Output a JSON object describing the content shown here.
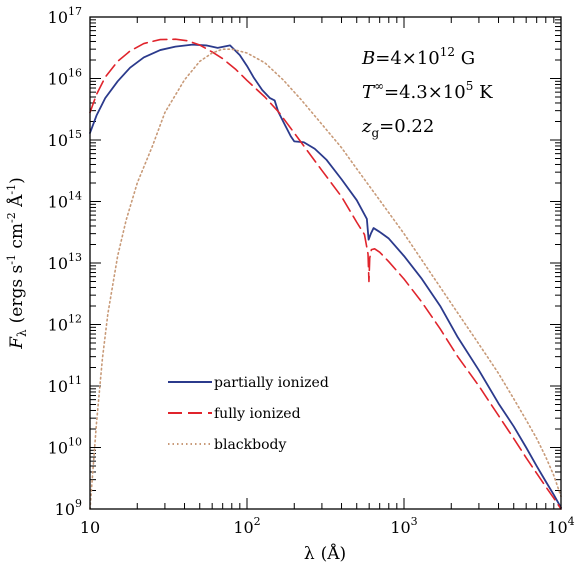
{
  "chart_data": {
    "type": "line",
    "x_scale": "log",
    "y_scale": "log",
    "xlim": [
      10,
      10000
    ],
    "ylim": [
      1000000000.0,
      1e+17
    ],
    "xlabel": "λ (Å)",
    "ylabel": "Fλ (ergs s⁻¹ cm⁻² Å⁻¹)",
    "ylabel_parts": {
      "base": "F",
      "sub": "λ",
      "rest": "(ergs s",
      "e1": "-1",
      "mid": " cm",
      "e2": "-2",
      "mid2": " Å",
      "e3": "-1",
      "end": ")"
    },
    "xlabel_parts": {
      "sym": "λ",
      "rest": "(Å)"
    },
    "x_ticks": [
      {
        "base": "10",
        "exp": ""
      },
      {
        "base": "10",
        "exp": "2"
      },
      {
        "base": "10",
        "exp": "3"
      },
      {
        "base": "10",
        "exp": "4"
      }
    ],
    "y_ticks": [
      {
        "base": "10",
        "exp": "9"
      },
      {
        "base": "10",
        "exp": "10"
      },
      {
        "base": "10",
        "exp": "11"
      },
      {
        "base": "10",
        "exp": "12"
      },
      {
        "base": "10",
        "exp": "13"
      },
      {
        "base": "10",
        "exp": "14"
      },
      {
        "base": "10",
        "exp": "15"
      },
      {
        "base": "10",
        "exp": "16"
      },
      {
        "base": "10",
        "exp": "17"
      }
    ],
    "annotations": [
      {
        "text": "B=4×10¹² G",
        "parts": {
          "var": "B",
          "a": "=4×10",
          "sup": "12",
          "b": " G"
        }
      },
      {
        "text": "T∞=4.3×10⁵ K",
        "parts": {
          "var": "T",
          "sup": "∞",
          "a": "=4.3×10",
          "sup2": "5",
          "b": " K"
        }
      },
      {
        "text": "zg=0.22",
        "parts": {
          "var": "z",
          "sub": "g",
          "a": "=0.22"
        }
      }
    ],
    "legend_position": "lower-left",
    "series": [
      {
        "name": "partially ionized",
        "color": "#2b3a8c",
        "dash": "solid",
        "points": [
          [
            10,
            1300000000000000.0
          ],
          [
            11,
            2500000000000000.0
          ],
          [
            12.5,
            4800000000000000.0
          ],
          [
            15,
            9000000000000000.0
          ],
          [
            18,
            1.5e+16
          ],
          [
            22,
            2.2e+16
          ],
          [
            28,
            2.9e+16
          ],
          [
            35,
            3.3e+16
          ],
          [
            45,
            3.55e+16
          ],
          [
            55,
            3.45e+16
          ],
          [
            65,
            3.15e+16
          ],
          [
            78,
            3.45e+16
          ],
          [
            90,
            2.4e+16
          ],
          [
            100,
            1.6e+16
          ],
          [
            110,
            1.05e+16
          ],
          [
            125,
            6500000000000000.0
          ],
          [
            140,
            4800000000000000.0
          ],
          [
            150,
            4400000000000000.0
          ],
          [
            158,
            2900000000000000.0
          ],
          [
            170,
            2000000000000000.0
          ],
          [
            190,
            1150000000000000.0
          ],
          [
            200,
            950000000000000.0
          ],
          [
            230,
            920000000000000.0
          ],
          [
            270,
            720000000000000.0
          ],
          [
            320,
            480000000000000.0
          ],
          [
            400,
            230000000000000.0
          ],
          [
            500,
            105000000000000.0
          ],
          [
            580,
            52000000000000.0
          ],
          [
            595,
            24000000000000.0
          ],
          [
            615,
            30000000000000.0
          ],
          [
            640,
            37000000000000.0
          ],
          [
            700,
            32000000000000.0
          ],
          [
            800,
            25000000000000.0
          ],
          [
            1000,
            13000000000000.0
          ],
          [
            1300,
            5500000000000.0
          ],
          [
            1700,
            2000000000000.0
          ],
          [
            2200,
            620000000000.0
          ],
          [
            3000,
            180000000000.0
          ],
          [
            4000,
            52000000000.0
          ],
          [
            5000,
            22000000000.0
          ],
          [
            6000,
            10000000000.0
          ],
          [
            7000,
            5000000000.0
          ],
          [
            8000,
            2800000000.0
          ],
          [
            9000,
            1700000000.0
          ],
          [
            10000,
            1050000000.0
          ]
        ]
      },
      {
        "name": "fully ionized",
        "color": "#e0242c",
        "dash": "long-dash",
        "points": [
          [
            10,
            2800000000000000.0
          ],
          [
            11,
            5500000000000000.0
          ],
          [
            12.5,
            1.05e+16
          ],
          [
            15,
            1.9e+16
          ],
          [
            18,
            2.8e+16
          ],
          [
            22,
            3.7e+16
          ],
          [
            28,
            4.3e+16
          ],
          [
            35,
            4.35e+16
          ],
          [
            42,
            4.1e+16
          ],
          [
            50,
            3.5e+16
          ],
          [
            60,
            2.7e+16
          ],
          [
            70,
            2.1e+16
          ],
          [
            85,
            1.4e+16
          ],
          [
            100,
            9300000000000000.0
          ],
          [
            130,
            5000000000000000.0
          ],
          [
            160,
            2800000000000000.0
          ],
          [
            200,
            1300000000000000.0
          ],
          [
            250,
            600000000000000.0
          ],
          [
            300,
            320000000000000.0
          ],
          [
            400,
            120000000000000.0
          ],
          [
            500,
            46000000000000.0
          ],
          [
            560,
            29000000000000.0
          ],
          [
            590,
            14000000000000.0
          ],
          [
            598,
            5000000000000.0
          ],
          [
            605,
            12000000000000.0
          ],
          [
            620,
            16500000000000.0
          ],
          [
            650,
            17000000000000.0
          ],
          [
            700,
            15000000000000.0
          ],
          [
            800,
            10500000000000.0
          ],
          [
            1000,
            5500000000000.0
          ],
          [
            1300,
            2300000000000.0
          ],
          [
            1700,
            850000000000.0
          ],
          [
            2200,
            300000000000.0
          ],
          [
            3000,
            100000000000.0
          ],
          [
            4000,
            33000000000.0
          ],
          [
            5000,
            14000000000.0
          ],
          [
            6000,
            6800000000.0
          ],
          [
            7000,
            3800000000.0
          ],
          [
            8000,
            2300000000.0
          ],
          [
            9000,
            1500000000.0
          ],
          [
            10000,
            1000000000.0
          ]
        ]
      },
      {
        "name": "blackbody",
        "color": "#c89a78",
        "dash": "dotted",
        "points": [
          [
            10,
            1000000000.0
          ],
          [
            11,
            25000000000.0
          ],
          [
            12,
            280000000000.0
          ],
          [
            13,
            1500000000000.0
          ],
          [
            15,
            13000000000000.0
          ],
          [
            17,
            50000000000000.0
          ],
          [
            20,
            200000000000000.0
          ],
          [
            25,
            800000000000000.0
          ],
          [
            30,
            2800000000000000.0
          ],
          [
            40,
            9500000000000000.0
          ],
          [
            50,
            1.9e+16
          ],
          [
            60,
            2.6e+16
          ],
          [
            70,
            3e+16
          ],
          [
            80,
            3e+16
          ],
          [
            100,
            2.6e+16
          ],
          [
            130,
            1.8e+16
          ],
          [
            170,
            9500000000000000.0
          ],
          [
            220,
            4600000000000000.0
          ],
          [
            300,
            1800000000000000.0
          ],
          [
            400,
            750000000000000.0
          ],
          [
            500,
            340000000000000.0
          ],
          [
            700,
            105000000000000.0
          ],
          [
            1000,
            30000000000000.0
          ],
          [
            1500,
            6500000000000.0
          ],
          [
            2000,
            2200000000000.0
          ],
          [
            3000,
            480000000000.0
          ],
          [
            4000,
            160000000000.0
          ],
          [
            5000,
            62000000000.0
          ],
          [
            6000,
            28000000000.0
          ],
          [
            7000,
            14000000000.0
          ],
          [
            8000,
            7000000000.0
          ],
          [
            9000,
            3500000000.0
          ],
          [
            10000,
            1600000000.0
          ]
        ]
      }
    ]
  }
}
